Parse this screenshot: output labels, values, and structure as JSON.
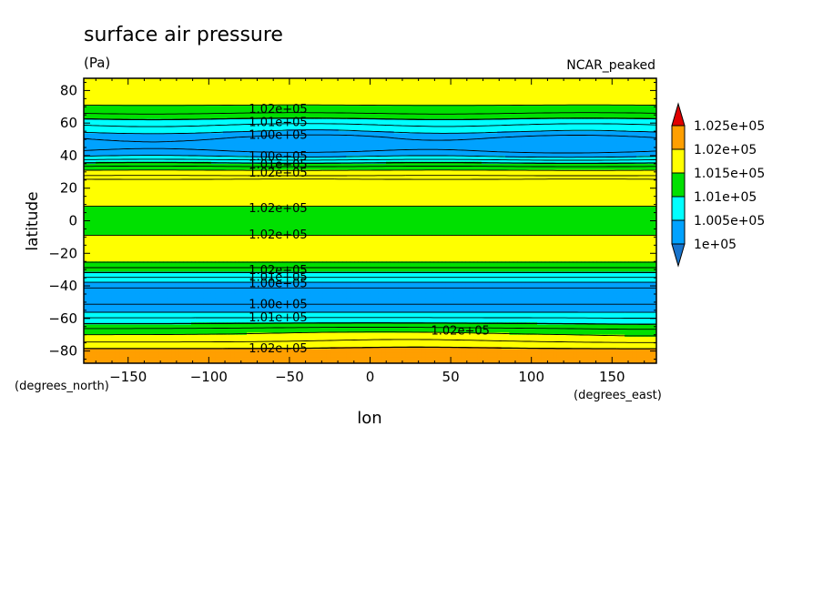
{
  "chart_data": {
    "type": "heatmap",
    "title": "surface air pressure",
    "units": "(Pa)",
    "dataset": "NCAR_peaked",
    "xlabel": "lon",
    "ylabel": "latitude",
    "x_units": "(degrees_east)",
    "y_units": "(degrees_north)",
    "xlim": [
      -177.5,
      177.5
    ],
    "ylim": [
      -87.5,
      87.5
    ],
    "x_ticks": [
      -150,
      -100,
      -50,
      0,
      50,
      100,
      150
    ],
    "x_tick_labels": [
      "−150",
      "−100",
      "−50",
      "0",
      "50",
      "100",
      "150"
    ],
    "y_ticks": [
      80,
      60,
      40,
      20,
      0,
      -20,
      -40,
      -60,
      -80
    ],
    "y_tick_labels": [
      "80",
      "60",
      "40",
      "20",
      "0",
      "−20",
      "−40",
      "−60",
      "−80"
    ],
    "color_levels": [
      100000,
      100500,
      101000,
      101500,
      102000,
      102500
    ],
    "colorbar_labels": [
      "1.025e+05",
      "1.02e+05",
      "1.015e+05",
      "1.01e+05",
      "1.005e+05",
      "1e+05"
    ],
    "colors": {
      "below": "#1874cd",
      "100000-100500": "#00a2ff",
      "100500-101000": "#00ffff",
      "101000-101500": "#00e000",
      "101500-102000": "#ffff00",
      "102000-102500": "#ff9f00",
      "above": "#e10000",
      "contour": "#000000"
    },
    "zonal_mean_profile": {
      "lat": [
        87.5,
        82,
        77,
        72,
        68,
        65,
        62,
        58,
        55,
        52,
        48,
        45,
        42,
        39,
        36,
        33,
        30,
        27,
        24,
        20,
        15,
        10,
        8,
        0,
        -8,
        -10,
        -15,
        -20,
        -24,
        -27,
        -30,
        -33,
        -36,
        -39,
        -42,
        -46,
        -50,
        -55,
        -58,
        -62,
        -65,
        -68,
        -72,
        -77,
        -80,
        -87.5
      ],
      "value": [
        101700,
        101700,
        101700,
        101550,
        101350,
        101200,
        100950,
        100700,
        100550,
        100300,
        100150,
        100150,
        100300,
        100550,
        100950,
        101300,
        101600,
        101800,
        101700,
        101600,
        101550,
        101550,
        101450,
        101400,
        101450,
        101550,
        101600,
        101650,
        101600,
        101400,
        101150,
        100900,
        100650,
        100400,
        100200,
        100150,
        100200,
        100400,
        100650,
        100900,
        101150,
        101400,
        101600,
        101900,
        102100,
        102200
      ]
    },
    "contour_labels": [
      {
        "text": "1.02e+05",
        "lon": -57,
        "lat": 69
      },
      {
        "text": "1.01e+05",
        "lon": -57,
        "lat": 61
      },
      {
        "text": "1.00e+05",
        "lon": -57,
        "lat": 53
      },
      {
        "text": "1.00e+05",
        "lon": -57,
        "lat": 40
      },
      {
        "text": "1.01e+05",
        "lon": -57,
        "lat": 35
      },
      {
        "text": "1.02e+05",
        "lon": -57,
        "lat": 30
      },
      {
        "text": "1.02e+05",
        "lon": -57,
        "lat": 8
      },
      {
        "text": "1.02e+05",
        "lon": -57,
        "lat": -8
      },
      {
        "text": "1.02e+05",
        "lon": -57,
        "lat": -30
      },
      {
        "text": "1.01e+05",
        "lon": -57,
        "lat": -34
      },
      {
        "text": "1.00e+05",
        "lon": -57,
        "lat": -38
      },
      {
        "text": "1.00e+05",
        "lon": -57,
        "lat": -51
      },
      {
        "text": "1.01e+05",
        "lon": -57,
        "lat": -59
      },
      {
        "text": "1.02e+05",
        "lon": 56,
        "lat": -67
      },
      {
        "text": "1.02e+05",
        "lon": -57,
        "lat": -78
      }
    ]
  }
}
